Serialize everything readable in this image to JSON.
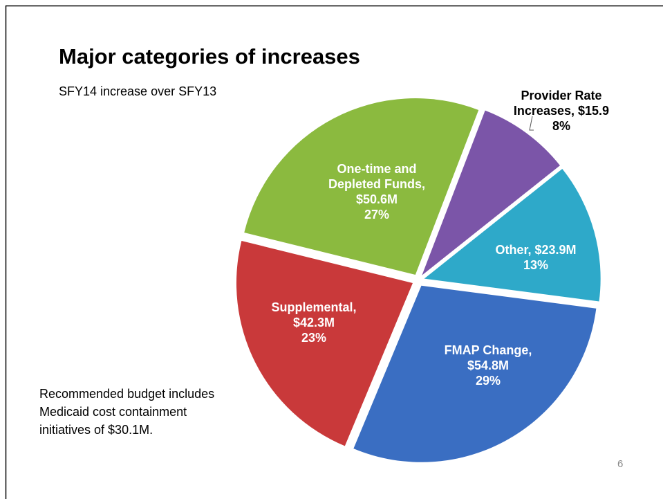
{
  "title": "Major categories of increases",
  "subtitle": "SFY14 increase over SFY13",
  "note": [
    "Recommended budget includes",
    "Medicaid cost containment",
    "initiatives of $30.1M."
  ],
  "page_number": "6",
  "chart_data": {
    "type": "pie",
    "categories": [
      "Provider Rate Increases,",
      "Other,",
      "FMAP Change,",
      "Supplemental,",
      "One-time and Depleted Funds,"
    ],
    "values": [
      15.9,
      23.9,
      54.8,
      42.3,
      50.6
    ],
    "value_labels": [
      "$15.9",
      "$23.9M",
      "$54.8M",
      "$42.3M",
      "$50.6M"
    ],
    "percentages": [
      8,
      13,
      29,
      23,
      27
    ],
    "percentage_labels": [
      "8%",
      "13%",
      "29%",
      "23%",
      "27%"
    ],
    "colors": [
      "#7b55a8",
      "#2ea9c9",
      "#3a6ec2",
      "#c9393a",
      "#8bba3f"
    ]
  }
}
